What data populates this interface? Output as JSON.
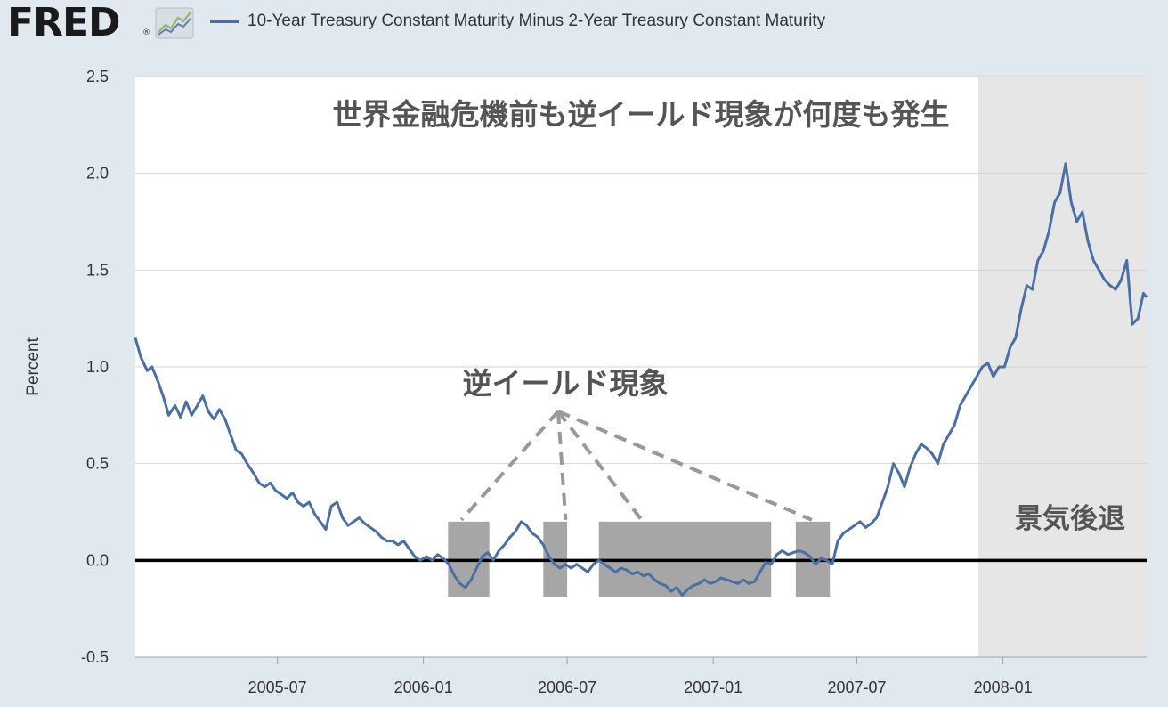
{
  "header": {
    "logo_text": "FRED",
    "logo_reg": "®",
    "legend_label": "10-Year Treasury Constant Maturity Minus 2-Year Treasury Constant Maturity"
  },
  "colors": {
    "series": "#4a6fa5",
    "background": "#e1e9f0",
    "plot": "#ffffff",
    "recession": "#e6e6e6",
    "highlight": "#a6a6a6",
    "zero_line": "#000000",
    "dashes": "#999999"
  },
  "icons": {
    "logo": "chart-line-icon"
  },
  "annotations": {
    "headline": "世界金融危機前も逆イールド現象が何度も発生",
    "inversion_label": "逆イールド現象",
    "recession_label": "景気後退"
  },
  "chart_data": {
    "type": "line",
    "title": "",
    "xlabel": "",
    "ylabel": "Percent",
    "x_range": [
      "2005-01-03",
      "2008-06-30"
    ],
    "ylim": [
      -0.5,
      2.5
    ],
    "y_ticks": [
      -0.5,
      0.0,
      0.5,
      1.0,
      1.5,
      2.0,
      2.5
    ],
    "y_tick_labels": [
      "-0.5",
      "0.0",
      "0.5",
      "1.0",
      "1.5",
      "2.0",
      "2.5"
    ],
    "x_ticks": [
      "2005-07",
      "2006-01",
      "2006-07",
      "2007-01",
      "2007-07",
      "2008-01"
    ],
    "grid": true,
    "legend_position": "top",
    "recession_shading": [
      [
        "2007-12-01",
        "2008-06-30"
      ]
    ],
    "inversion_boxes": [
      [
        "2006-02-01",
        "2006-03-25"
      ],
      [
        "2006-06-01",
        "2006-07-01"
      ],
      [
        "2006-08-10",
        "2007-03-15"
      ],
      [
        "2007-04-15",
        "2007-05-28"
      ]
    ],
    "series": [
      {
        "name": "10-Year Treasury Constant Maturity Minus 2-Year Treasury Constant Maturity",
        "points": [
          [
            "2005-01-03",
            1.15
          ],
          [
            "2005-01-10",
            1.05
          ],
          [
            "2005-01-18",
            0.98
          ],
          [
            "2005-01-24",
            1.0
          ],
          [
            "2005-01-31",
            0.93
          ],
          [
            "2005-02-07",
            0.85
          ],
          [
            "2005-02-14",
            0.75
          ],
          [
            "2005-02-22",
            0.8
          ],
          [
            "2005-03-01",
            0.74
          ],
          [
            "2005-03-08",
            0.82
          ],
          [
            "2005-03-15",
            0.75
          ],
          [
            "2005-03-22",
            0.8
          ],
          [
            "2005-03-29",
            0.85
          ],
          [
            "2005-04-05",
            0.77
          ],
          [
            "2005-04-12",
            0.73
          ],
          [
            "2005-04-19",
            0.78
          ],
          [
            "2005-04-26",
            0.73
          ],
          [
            "2005-05-03",
            0.65
          ],
          [
            "2005-05-10",
            0.57
          ],
          [
            "2005-05-17",
            0.55
          ],
          [
            "2005-05-24",
            0.5
          ],
          [
            "2005-06-01",
            0.45
          ],
          [
            "2005-06-08",
            0.4
          ],
          [
            "2005-06-15",
            0.38
          ],
          [
            "2005-06-22",
            0.4
          ],
          [
            "2005-06-29",
            0.36
          ],
          [
            "2005-07-06",
            0.34
          ],
          [
            "2005-07-13",
            0.32
          ],
          [
            "2005-07-20",
            0.35
          ],
          [
            "2005-07-27",
            0.3
          ],
          [
            "2005-08-03",
            0.28
          ],
          [
            "2005-08-10",
            0.3
          ],
          [
            "2005-08-17",
            0.24
          ],
          [
            "2005-08-24",
            0.2
          ],
          [
            "2005-08-31",
            0.16
          ],
          [
            "2005-09-07",
            0.28
          ],
          [
            "2005-09-14",
            0.3
          ],
          [
            "2005-09-21",
            0.22
          ],
          [
            "2005-09-28",
            0.18
          ],
          [
            "2005-10-05",
            0.2
          ],
          [
            "2005-10-12",
            0.22
          ],
          [
            "2005-10-19",
            0.19
          ],
          [
            "2005-10-26",
            0.17
          ],
          [
            "2005-11-02",
            0.15
          ],
          [
            "2005-11-09",
            0.12
          ],
          [
            "2005-11-16",
            0.1
          ],
          [
            "2005-11-23",
            0.1
          ],
          [
            "2005-11-30",
            0.08
          ],
          [
            "2005-12-07",
            0.1
          ],
          [
            "2005-12-14",
            0.06
          ],
          [
            "2005-12-21",
            0.02
          ],
          [
            "2005-12-28",
            0.0
          ],
          [
            "2006-01-05",
            0.02
          ],
          [
            "2006-01-12",
            0.0
          ],
          [
            "2006-01-19",
            0.03
          ],
          [
            "2006-01-26",
            0.01
          ],
          [
            "2006-02-02",
            -0.02
          ],
          [
            "2006-02-09",
            -0.08
          ],
          [
            "2006-02-16",
            -0.12
          ],
          [
            "2006-02-23",
            -0.14
          ],
          [
            "2006-03-02",
            -0.1
          ],
          [
            "2006-03-09",
            -0.04
          ],
          [
            "2006-03-16",
            0.02
          ],
          [
            "2006-03-23",
            0.04
          ],
          [
            "2006-03-30",
            0.0
          ],
          [
            "2006-04-06",
            0.05
          ],
          [
            "2006-04-13",
            0.08
          ],
          [
            "2006-04-20",
            0.12
          ],
          [
            "2006-04-27",
            0.15
          ],
          [
            "2006-05-04",
            0.2
          ],
          [
            "2006-05-11",
            0.18
          ],
          [
            "2006-05-18",
            0.14
          ],
          [
            "2006-05-25",
            0.12
          ],
          [
            "2006-06-01",
            0.08
          ],
          [
            "2006-06-08",
            0.02
          ],
          [
            "2006-06-15",
            -0.02
          ],
          [
            "2006-06-22",
            -0.04
          ],
          [
            "2006-06-29",
            -0.02
          ],
          [
            "2006-07-06",
            -0.04
          ],
          [
            "2006-07-13",
            -0.02
          ],
          [
            "2006-07-20",
            -0.04
          ],
          [
            "2006-07-27",
            -0.06
          ],
          [
            "2006-08-03",
            -0.02
          ],
          [
            "2006-08-10",
            0.0
          ],
          [
            "2006-08-17",
            -0.02
          ],
          [
            "2006-08-24",
            -0.04
          ],
          [
            "2006-08-31",
            -0.06
          ],
          [
            "2006-09-07",
            -0.04
          ],
          [
            "2006-09-14",
            -0.05
          ],
          [
            "2006-09-21",
            -0.07
          ],
          [
            "2006-09-28",
            -0.06
          ],
          [
            "2006-10-05",
            -0.08
          ],
          [
            "2006-10-12",
            -0.07
          ],
          [
            "2006-10-19",
            -0.1
          ],
          [
            "2006-10-26",
            -0.12
          ],
          [
            "2006-11-02",
            -0.13
          ],
          [
            "2006-11-09",
            -0.16
          ],
          [
            "2006-11-16",
            -0.14
          ],
          [
            "2006-11-23",
            -0.18
          ],
          [
            "2006-11-30",
            -0.15
          ],
          [
            "2006-12-07",
            -0.13
          ],
          [
            "2006-12-14",
            -0.12
          ],
          [
            "2006-12-21",
            -0.1
          ],
          [
            "2006-12-28",
            -0.12
          ],
          [
            "2007-01-04",
            -0.11
          ],
          [
            "2007-01-11",
            -0.09
          ],
          [
            "2007-01-18",
            -0.1
          ],
          [
            "2007-01-25",
            -0.11
          ],
          [
            "2007-02-01",
            -0.12
          ],
          [
            "2007-02-08",
            -0.1
          ],
          [
            "2007-02-15",
            -0.12
          ],
          [
            "2007-02-22",
            -0.11
          ],
          [
            "2007-03-01",
            -0.06
          ],
          [
            "2007-03-08",
            -0.01
          ],
          [
            "2007-03-15",
            -0.02
          ],
          [
            "2007-03-22",
            0.03
          ],
          [
            "2007-03-29",
            0.05
          ],
          [
            "2007-04-05",
            0.03
          ],
          [
            "2007-04-12",
            0.04
          ],
          [
            "2007-04-19",
            0.05
          ],
          [
            "2007-04-26",
            0.04
          ],
          [
            "2007-05-03",
            0.02
          ],
          [
            "2007-05-10",
            -0.02
          ],
          [
            "2007-05-17",
            0.01
          ],
          [
            "2007-05-24",
            0.0
          ],
          [
            "2007-05-31",
            -0.02
          ],
          [
            "2007-06-07",
            0.1
          ],
          [
            "2007-06-14",
            0.14
          ],
          [
            "2007-06-21",
            0.16
          ],
          [
            "2007-06-28",
            0.18
          ],
          [
            "2007-07-05",
            0.2
          ],
          [
            "2007-07-12",
            0.17
          ],
          [
            "2007-07-19",
            0.19
          ],
          [
            "2007-07-26",
            0.22
          ],
          [
            "2007-08-02",
            0.3
          ],
          [
            "2007-08-09",
            0.38
          ],
          [
            "2007-08-16",
            0.5
          ],
          [
            "2007-08-23",
            0.45
          ],
          [
            "2007-08-30",
            0.38
          ],
          [
            "2007-09-06",
            0.48
          ],
          [
            "2007-09-13",
            0.55
          ],
          [
            "2007-09-20",
            0.6
          ],
          [
            "2007-09-27",
            0.58
          ],
          [
            "2007-10-04",
            0.55
          ],
          [
            "2007-10-11",
            0.5
          ],
          [
            "2007-10-18",
            0.6
          ],
          [
            "2007-10-25",
            0.65
          ],
          [
            "2007-11-01",
            0.7
          ],
          [
            "2007-11-08",
            0.8
          ],
          [
            "2007-11-15",
            0.85
          ],
          [
            "2007-11-22",
            0.9
          ],
          [
            "2007-11-29",
            0.95
          ],
          [
            "2007-12-06",
            1.0
          ],
          [
            "2007-12-13",
            1.02
          ],
          [
            "2007-12-20",
            0.95
          ],
          [
            "2007-12-27",
            1.0
          ],
          [
            "2008-01-03",
            1.0
          ],
          [
            "2008-01-10",
            1.1
          ],
          [
            "2008-01-17",
            1.15
          ],
          [
            "2008-01-24",
            1.3
          ],
          [
            "2008-01-31",
            1.42
          ],
          [
            "2008-02-07",
            1.4
          ],
          [
            "2008-02-14",
            1.55
          ],
          [
            "2008-02-21",
            1.6
          ],
          [
            "2008-02-28",
            1.7
          ],
          [
            "2008-03-06",
            1.85
          ],
          [
            "2008-03-13",
            1.9
          ],
          [
            "2008-03-20",
            2.05
          ],
          [
            "2008-03-27",
            1.85
          ],
          [
            "2008-04-03",
            1.75
          ],
          [
            "2008-04-10",
            1.8
          ],
          [
            "2008-04-17",
            1.65
          ],
          [
            "2008-04-24",
            1.55
          ],
          [
            "2008-05-01",
            1.5
          ],
          [
            "2008-05-08",
            1.45
          ],
          [
            "2008-05-15",
            1.42
          ],
          [
            "2008-05-22",
            1.4
          ],
          [
            "2008-05-29",
            1.45
          ],
          [
            "2008-06-05",
            1.55
          ],
          [
            "2008-06-12",
            1.22
          ],
          [
            "2008-06-19",
            1.25
          ],
          [
            "2008-06-26",
            1.38
          ],
          [
            "2008-06-30",
            1.36
          ]
        ]
      }
    ]
  }
}
